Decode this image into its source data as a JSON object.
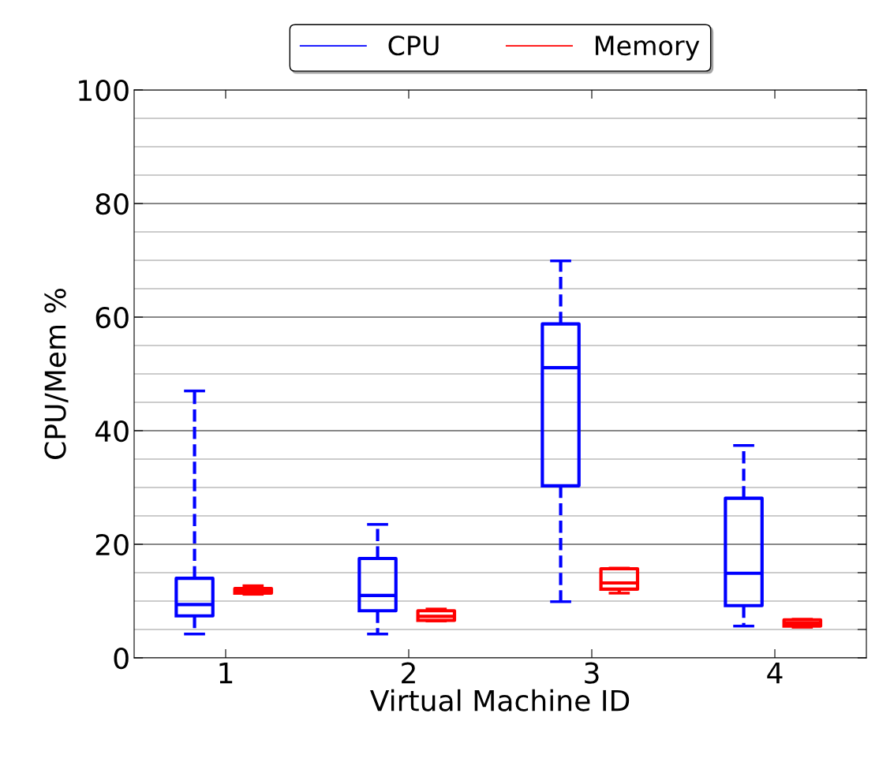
{
  "chart_data": {
    "type": "box",
    "xlabel": "Virtual Machine ID",
    "ylabel": "CPU/Mem %",
    "categories": [
      "1",
      "2",
      "3",
      "4"
    ],
    "ylim": [
      0,
      100
    ],
    "yticks": [
      0,
      {
        "value": 5,
        "label": null
      },
      {
        "value": 10,
        "label": null
      },
      {
        "value": 15,
        "label": null
      },
      20,
      {
        "value": 25,
        "label": null
      },
      {
        "value": 30,
        "label": null
      },
      {
        "value": 35,
        "label": null
      },
      40,
      {
        "value": 45,
        "label": null
      },
      {
        "value": 50,
        "label": null
      },
      {
        "value": 55,
        "label": null
      },
      60,
      {
        "value": 65,
        "label": null
      },
      {
        "value": 70,
        "label": null
      },
      {
        "value": 75,
        "label": null
      },
      80,
      {
        "value": 85,
        "label": null
      },
      {
        "value": 90,
        "label": null
      },
      {
        "value": 95,
        "label": null
      },
      100
    ],
    "grid": "y",
    "legend": "top",
    "line_style": "dashed",
    "series": [
      {
        "name": "CPU",
        "color": "#0000ff",
        "boxes": [
          {
            "low": 4.2,
            "q1": 7.4,
            "median": 9.4,
            "q3": 14,
            "high": 47
          },
          {
            "low": 4.2,
            "q1": 8.3,
            "median": 11,
            "q3": 17.5,
            "high": 23.5
          },
          {
            "low": 9.9,
            "q1": 30.3,
            "median": 51.1,
            "q3": 58.8,
            "high": 69.9
          },
          {
            "low": 5.6,
            "q1": 9.2,
            "median": 14.9,
            "q3": 28.1,
            "high": 37.4
          }
        ]
      },
      {
        "name": "Memory",
        "color": "#ff0000",
        "boxes": [
          {
            "low": 11.2,
            "q1": 11.4,
            "median": 11.8,
            "q3": 12.2,
            "high": 12.7
          },
          {
            "low": 6.5,
            "q1": 6.6,
            "median": 7.3,
            "q3": 8.3,
            "high": 8.6
          },
          {
            "low": 11.4,
            "q1": 12.1,
            "median": 13.2,
            "q3": 15.7,
            "high": 15.8
          },
          {
            "low": 5.4,
            "q1": 5.6,
            "median": 6.1,
            "q3": 6.7,
            "high": 6.8
          }
        ]
      }
    ]
  }
}
